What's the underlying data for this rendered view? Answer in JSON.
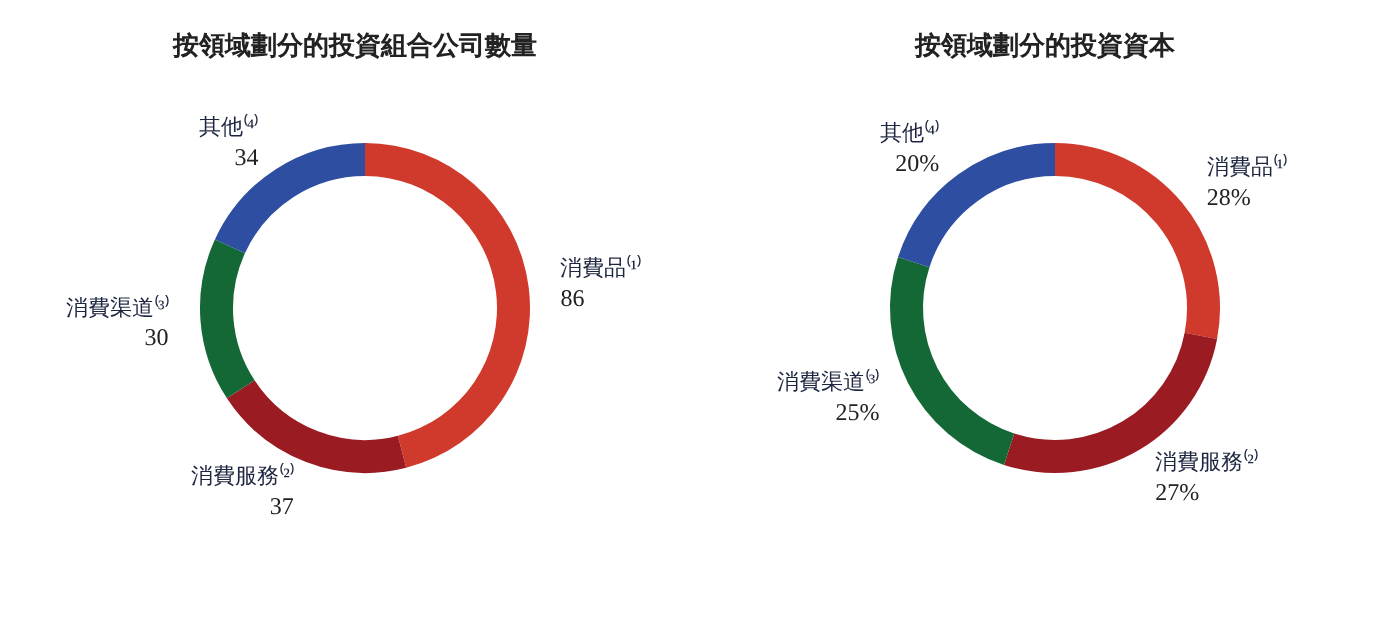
{
  "chart_data": [
    {
      "type": "donut",
      "title": "按領域劃分的投資組合公司數量",
      "categories": [
        "消費品⁽¹⁾",
        "消費服務⁽²⁾",
        "消費渠道⁽³⁾",
        "其他⁽⁴⁾"
      ],
      "values": [
        86,
        37,
        30,
        34
      ],
      "colors": [
        "#d03a2c",
        "#9a1b22",
        "#136835",
        "#2e4fa1"
      ],
      "value_labels": [
        "86",
        "37",
        "30",
        "34"
      ]
    },
    {
      "type": "donut",
      "title": "按領域劃分的投資資本",
      "categories": [
        "消費品⁽¹⁾",
        "消費服務⁽²⁾",
        "消費渠道⁽³⁾",
        "其他⁽⁴⁾"
      ],
      "values": [
        28,
        27,
        25,
        20
      ],
      "colors": [
        "#d03a2c",
        "#9a1b22",
        "#136835",
        "#2e4fa1"
      ],
      "value_labels": [
        "28%",
        "27%",
        "25%",
        "20%"
      ]
    }
  ]
}
